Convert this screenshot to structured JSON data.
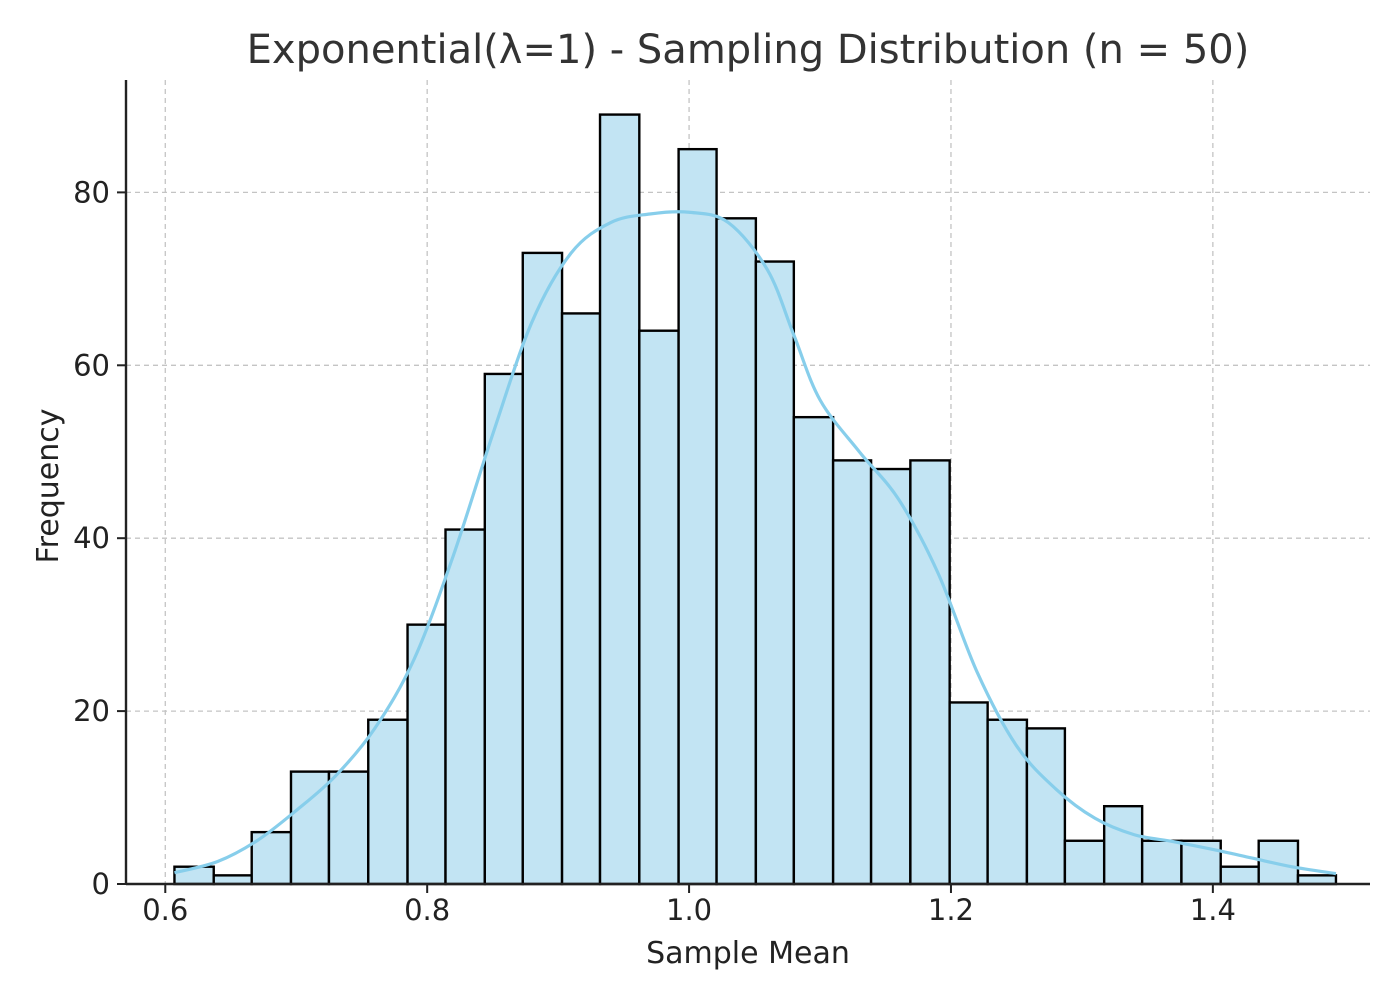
{
  "chart_data": {
    "type": "bar",
    "title": "Exponential(λ=1) - Sampling Distribution (n = 50)",
    "xlabel": "Sample Mean",
    "ylabel": "Frequency",
    "xlim": [
      0.57,
      1.52
    ],
    "ylim": [
      0,
      93
    ],
    "xticks": [
      0.6,
      0.8,
      1.0,
      1.2,
      1.4
    ],
    "xtick_labels": [
      "0.6",
      "0.8",
      "1.0",
      "1.2",
      "1.4"
    ],
    "yticks": [
      0,
      20,
      40,
      60,
      80
    ],
    "ytick_labels": [
      "0",
      "20",
      "40",
      "60",
      "80"
    ],
    "grid": true,
    "bin_edges": [
      0.607,
      0.637,
      0.666,
      0.696,
      0.725,
      0.755,
      0.785,
      0.814,
      0.844,
      0.873,
      0.903,
      0.932,
      0.962,
      0.992,
      1.021,
      1.051,
      1.08,
      1.11,
      1.139,
      1.169,
      1.199,
      1.228,
      1.258,
      1.287,
      1.317,
      1.346,
      1.376,
      1.406,
      1.435,
      1.465,
      1.494
    ],
    "values": [
      2,
      1,
      6,
      13,
      13,
      19,
      30,
      41,
      59,
      73,
      66,
      89,
      64,
      85,
      77,
      72,
      54,
      49,
      48,
      49,
      21,
      19,
      18,
      5,
      9,
      5,
      5,
      2,
      5,
      1
    ],
    "kde": {
      "name": "",
      "x": [
        0.607,
        0.64,
        0.67,
        0.7,
        0.73,
        0.76,
        0.79,
        0.82,
        0.85,
        0.88,
        0.91,
        0.94,
        0.97,
        1.0,
        1.03,
        1.06,
        1.08,
        1.1,
        1.13,
        1.16,
        1.19,
        1.22,
        1.25,
        1.28,
        1.31,
        1.34,
        1.37,
        1.4,
        1.43,
        1.46,
        1.494
      ],
      "y": [
        1.3,
        2.6,
        5.0,
        8.5,
        12.5,
        18.0,
        26.0,
        38.0,
        52.0,
        65.0,
        73.0,
        76.5,
        77.5,
        77.7,
        76.5,
        71.0,
        63.5,
        56.0,
        50.0,
        44.5,
        36.0,
        24.5,
        16.0,
        11.0,
        7.6,
        5.7,
        4.9,
        4.0,
        3.0,
        2.0,
        1.2
      ]
    },
    "colors": {
      "bar_fill": "#c2e4f3",
      "bar_edge": "#000000",
      "kde_line": "#87ceeb",
      "grid": "#c4c4c4",
      "axis": "#222222",
      "title": "#333333",
      "text": "#222222"
    }
  }
}
